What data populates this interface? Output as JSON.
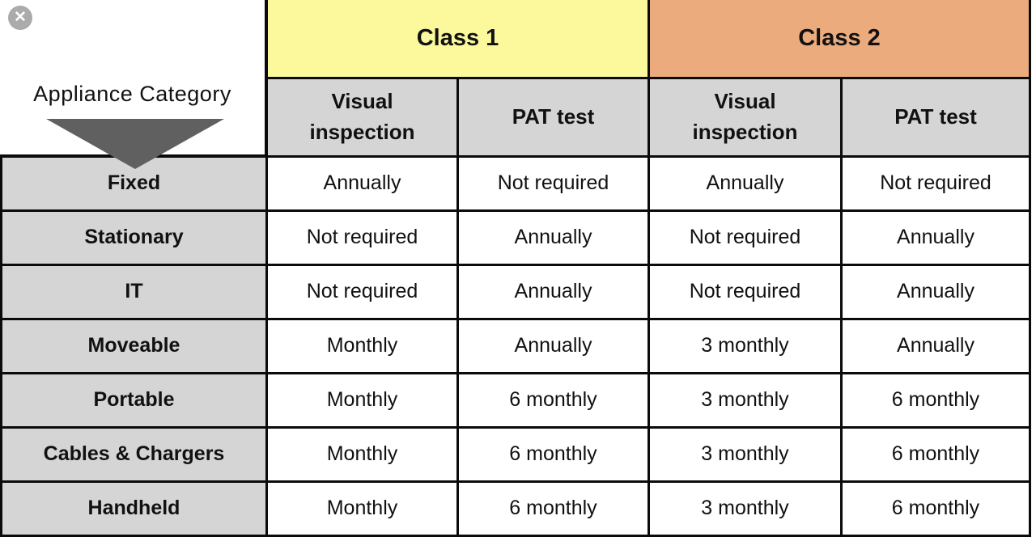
{
  "window": {
    "close_icon": "✕"
  },
  "colors": {
    "class1_bg": "#FBF99C",
    "class2_bg": "#ECAB7C",
    "subheader_bg": "#D5D5D5",
    "rowheader_bg": "#D5D5D5",
    "triangle": "#606060",
    "border": "#0b0b0b",
    "close_btn_bg": "#ababab"
  },
  "chart_data": {
    "type": "table",
    "corner_label": "Appliance Category",
    "class_headers": [
      "Class 1",
      "Class 2"
    ],
    "sub_headers": [
      "Visual inspection",
      "PAT test",
      "Visual inspection",
      "PAT test"
    ],
    "rows": [
      {
        "category": "Fixed",
        "values": [
          "Annually",
          "Not required",
          "Annually",
          "Not required"
        ]
      },
      {
        "category": "Stationary",
        "values": [
          "Not required",
          "Annually",
          "Not required",
          "Annually"
        ]
      },
      {
        "category": "IT",
        "values": [
          "Not required",
          "Annually",
          "Not required",
          "Annually"
        ]
      },
      {
        "category": "Moveable",
        "values": [
          "Monthly",
          "Annually",
          "3 monthly",
          "Annually"
        ]
      },
      {
        "category": "Portable",
        "values": [
          "Monthly",
          "6 monthly",
          "3 monthly",
          "6 monthly"
        ]
      },
      {
        "category": "Cables & Chargers",
        "values": [
          "Monthly",
          "6 monthly",
          "3 monthly",
          "6 monthly"
        ]
      },
      {
        "category": "Handheld",
        "values": [
          "Monthly",
          "6 monthly",
          "3 monthly",
          "6 monthly"
        ]
      }
    ]
  }
}
